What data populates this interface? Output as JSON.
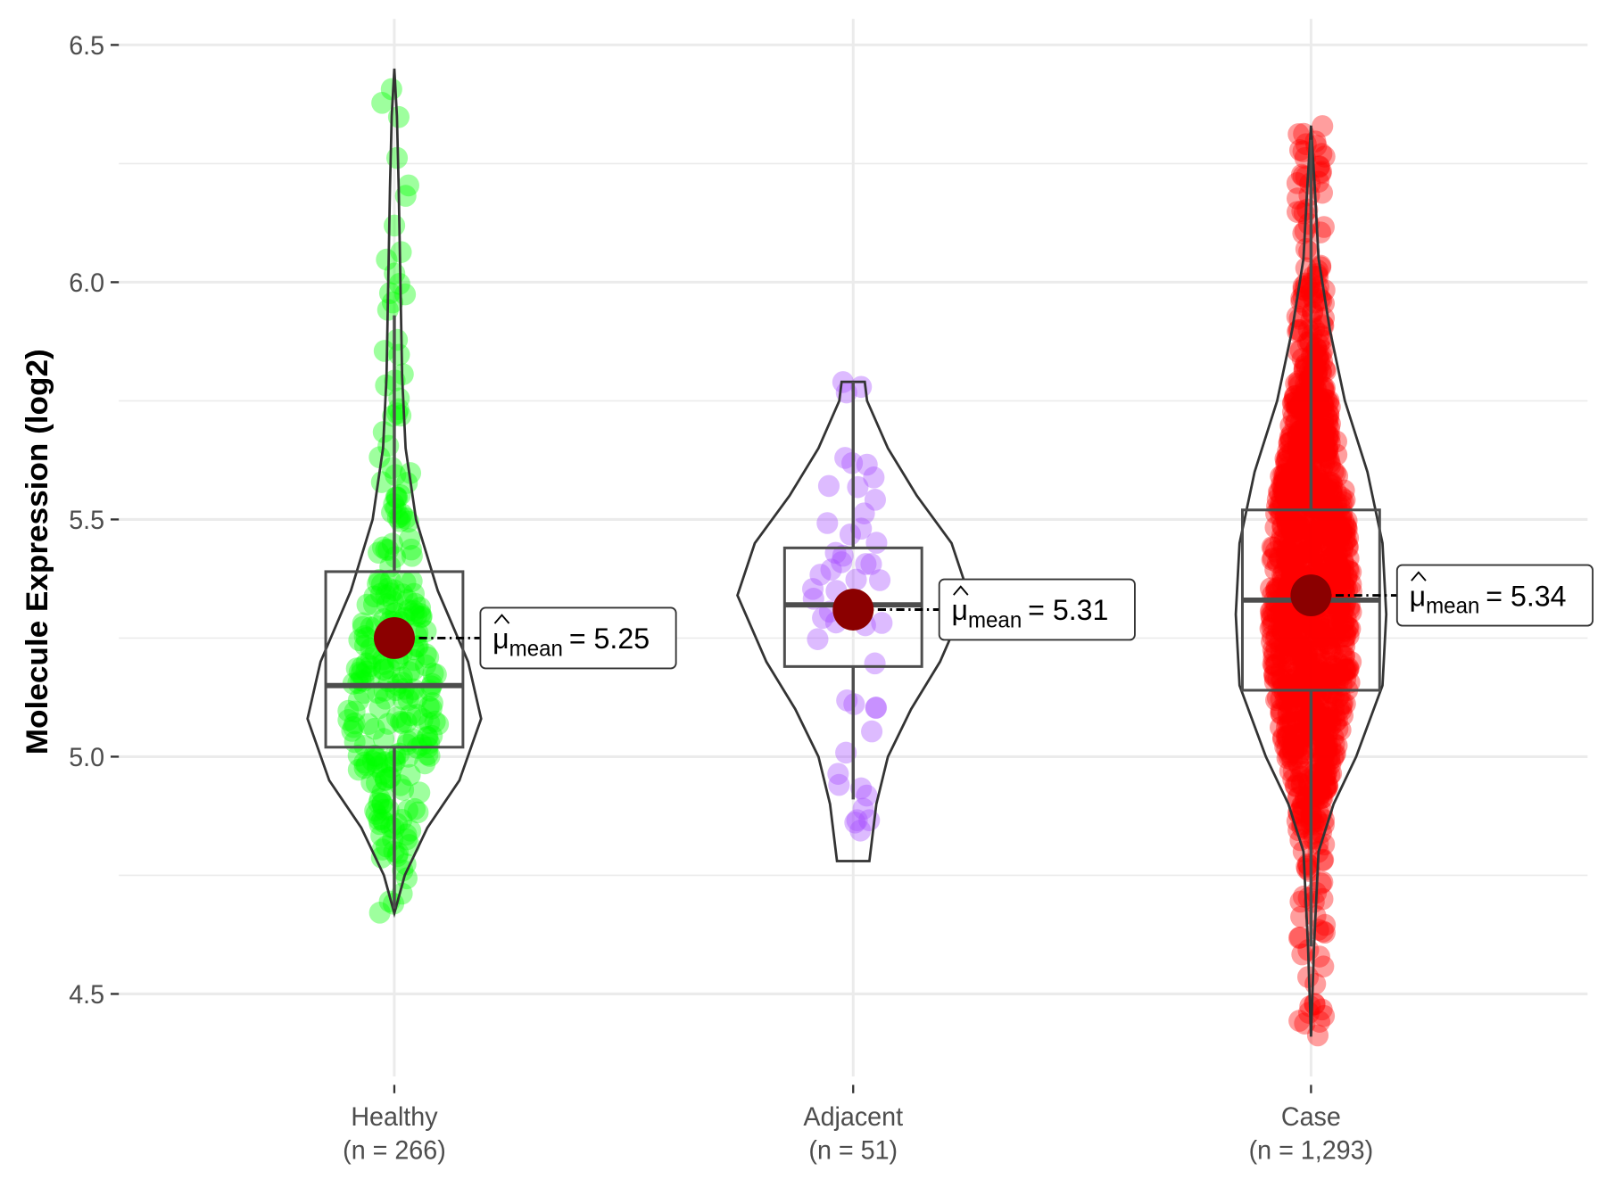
{
  "chart_data": {
    "type": "violin",
    "title": "",
    "xlabel": "",
    "ylabel": "Molecule Expression (log2)",
    "ylim": [
      4.3,
      6.55
    ],
    "yticks": [
      "4.5",
      "5.0",
      "5.5",
      "6.0",
      "6.5"
    ],
    "grid": true,
    "groups": [
      {
        "name": "Healthy",
        "n_label": "(n = 266)",
        "n": 266,
        "color": "#00ff00",
        "mean": 5.25,
        "mean_label": "5.25",
        "q1": 5.02,
        "median": 5.15,
        "q3": 5.39,
        "whisker_low": 4.68,
        "whisker_high": 5.93,
        "min": 4.67,
        "max": 6.45,
        "relative_width": 0.75,
        "density": [
          [
            4.67,
            0
          ],
          [
            4.75,
            0.12
          ],
          [
            4.85,
            0.38
          ],
          [
            4.95,
            0.75
          ],
          [
            5.08,
            1.0
          ],
          [
            5.2,
            0.85
          ],
          [
            5.35,
            0.5
          ],
          [
            5.5,
            0.25
          ],
          [
            5.65,
            0.13
          ],
          [
            5.8,
            0.09
          ],
          [
            6.0,
            0.07
          ],
          [
            6.2,
            0.05
          ],
          [
            6.35,
            0.03
          ],
          [
            6.45,
            0
          ]
        ]
      },
      {
        "name": "Adjacent",
        "n_label": "(n = 51)",
        "n": 51,
        "color": "#a64dff",
        "mean": 5.31,
        "mean_label": "5.31",
        "q1": 5.19,
        "median": 5.32,
        "q3": 5.44,
        "whisker_low": 4.91,
        "whisker_high": 5.79,
        "min": 4.78,
        "max": 5.79,
        "relative_width": 1.0,
        "density": [
          [
            4.78,
            0.14
          ],
          [
            4.9,
            0.2
          ],
          [
            5.0,
            0.3
          ],
          [
            5.1,
            0.5
          ],
          [
            5.2,
            0.75
          ],
          [
            5.34,
            1.0
          ],
          [
            5.45,
            0.85
          ],
          [
            5.55,
            0.55
          ],
          [
            5.65,
            0.3
          ],
          [
            5.75,
            0.12
          ],
          [
            5.79,
            0.1
          ]
        ]
      },
      {
        "name": "Case",
        "n_label": "(n = 1,293)",
        "n": 1293,
        "color": "#ff0000",
        "mean": 5.34,
        "mean_label": "5.34",
        "q1": 5.14,
        "median": 5.33,
        "q3": 5.52,
        "whisker_low": 4.6,
        "whisker_high": 6.3,
        "min": 4.41,
        "max": 6.33,
        "relative_width": 0.65,
        "density": [
          [
            4.41,
            0
          ],
          [
            4.6,
            0.04
          ],
          [
            4.8,
            0.1
          ],
          [
            4.9,
            0.3
          ],
          [
            5.0,
            0.6
          ],
          [
            5.15,
            0.95
          ],
          [
            5.3,
            1.0
          ],
          [
            5.45,
            0.95
          ],
          [
            5.6,
            0.75
          ],
          [
            5.75,
            0.45
          ],
          [
            5.9,
            0.25
          ],
          [
            6.05,
            0.1
          ],
          [
            6.2,
            0.05
          ],
          [
            6.33,
            0
          ]
        ]
      }
    ],
    "mean_label_prefix": "μ",
    "mean_label_subscript": "mean",
    "mean_label_eq": "= "
  }
}
